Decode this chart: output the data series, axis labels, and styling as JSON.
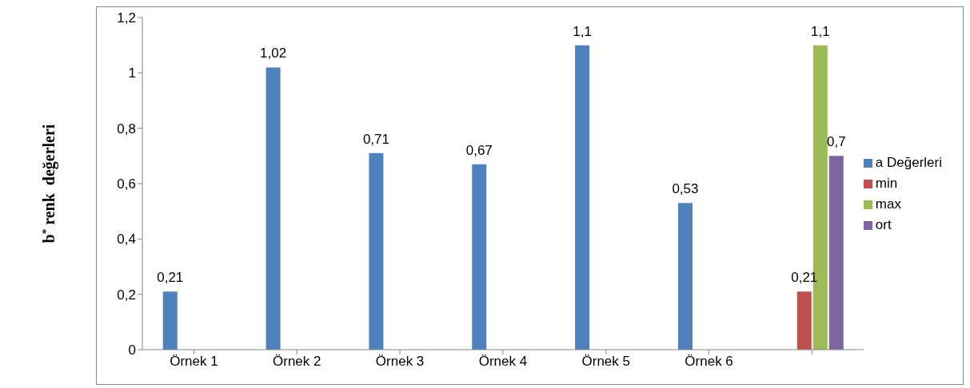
{
  "chart_data": {
    "type": "bar",
    "ylabel": "b$^{*}$ renk  değerleri",
    "categories": [
      "Örnek 1",
      "Örnek 2",
      "Örnek 3",
      "Örnek 4",
      "Örnek 5",
      "Örnek 6",
      null
    ],
    "series": [
      {
        "name": "a Değerleri",
        "color": "#4f81bd",
        "values": [
          0.21,
          1.02,
          0.71,
          0.67,
          1.1,
          0.53,
          null
        ],
        "value_labels": [
          "0,21",
          "1,02",
          "0,71",
          "0,67",
          "1,1",
          "0,53",
          null
        ]
      },
      {
        "name": "min",
        "color": "#c0504d",
        "values": [
          null,
          null,
          null,
          null,
          null,
          null,
          0.21
        ],
        "value_labels": [
          null,
          null,
          null,
          null,
          null,
          null,
          "0,21"
        ]
      },
      {
        "name": "max",
        "color": "#9bbb59",
        "values": [
          null,
          null,
          null,
          null,
          null,
          null,
          1.1
        ],
        "value_labels": [
          null,
          null,
          null,
          null,
          null,
          null,
          "1,1"
        ]
      },
      {
        "name": "ort",
        "color": "#8064a2",
        "values": [
          null,
          null,
          null,
          null,
          null,
          null,
          0.7
        ],
        "value_labels": [
          null,
          null,
          null,
          null,
          null,
          null,
          "0,7"
        ]
      }
    ],
    "ylim": [
      0,
      1.2
    ],
    "yticks": [
      0,
      {
        "value": 0.2,
        "label": "0,2"
      },
      {
        "value": 0.4,
        "label": "0,4"
      },
      {
        "value": 0.6,
        "label": "0,6"
      },
      {
        "value": 0.8,
        "label": "0,8"
      },
      1,
      {
        "value": 1.2,
        "label": "1,2"
      }
    ],
    "grid": false,
    "legend": "right"
  }
}
